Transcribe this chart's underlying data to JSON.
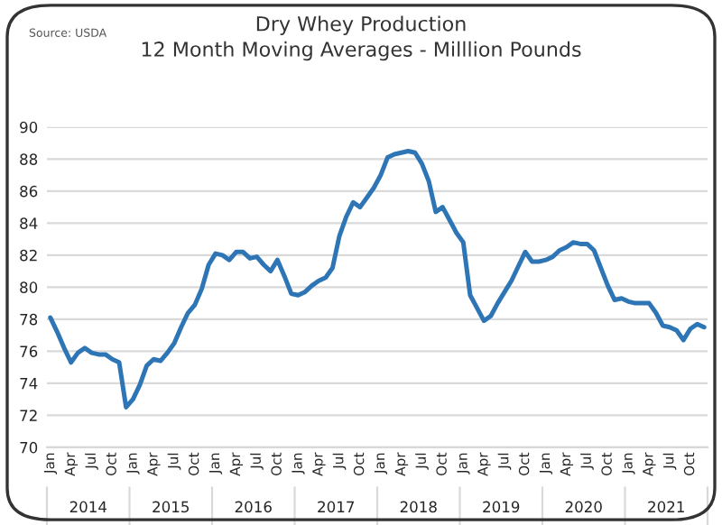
{
  "chart_data": {
    "type": "line",
    "title": "Dry Whey Production\n12 Month Moving Averages - Milllion Pounds",
    "categories": [
      "Jan",
      null,
      null,
      "Apr",
      null,
      null,
      "Jul",
      null,
      null,
      "Oct",
      null,
      null,
      "Jan",
      null,
      null,
      "Apr",
      null,
      null,
      "Jul",
      null,
      null,
      "Oct",
      null,
      null,
      "Jan",
      null,
      null,
      "Apr",
      null,
      null,
      "Jul",
      null,
      null,
      "Oct",
      null,
      null,
      "Jan",
      null,
      null,
      "Apr",
      null,
      null,
      "Jul",
      null,
      null,
      "Oct",
      null,
      null,
      "Jan",
      null,
      null,
      "Apr",
      null,
      null,
      "Jul",
      null,
      null,
      "Oct",
      null,
      null,
      "Jan",
      null,
      null,
      "Apr",
      null,
      null,
      "Jul",
      null,
      null,
      "Oct",
      null,
      null,
      "Jan",
      null,
      null,
      "Apr",
      null,
      null,
      "Jul",
      null,
      null,
      "Oct",
      null,
      null,
      "Jan",
      null,
      null,
      "Apr",
      null,
      null,
      "Jul",
      null,
      null,
      "Oct",
      null,
      null
    ],
    "series": [
      {
        "color": "#2e75b6",
        "values": [
          78.1,
          77.2,
          76.2,
          75.3,
          75.9,
          76.2,
          75.9,
          75.8,
          75.8,
          75.5,
          75.3,
          72.5,
          73.0,
          73.9,
          75.1,
          75.5,
          75.4,
          75.9,
          76.5,
          77.5,
          78.4,
          78.9,
          79.9,
          81.4,
          82.1,
          82.0,
          81.7,
          82.2,
          82.2,
          81.8,
          81.9,
          81.4,
          81.0,
          81.7,
          80.7,
          79.6,
          79.5,
          79.7,
          80.1,
          80.4,
          80.6,
          81.2,
          83.2,
          84.4,
          85.3,
          85.0,
          85.6,
          86.2,
          87.0,
          88.1,
          88.3,
          88.4,
          88.5,
          88.4,
          87.7,
          86.6,
          84.7,
          85.0,
          84.2,
          83.4,
          82.8,
          79.5,
          78.7,
          77.9,
          78.2,
          79.0,
          79.7,
          80.4,
          81.3,
          82.2,
          81.6,
          81.6,
          81.7,
          81.9,
          82.3,
          82.5,
          82.8,
          82.7,
          82.7,
          82.3,
          81.2,
          80.1,
          79.2,
          79.3,
          79.1,
          79.0,
          79.0,
          79.0,
          78.4,
          77.6,
          77.5,
          77.3,
          76.7,
          77.4,
          77.7,
          77.5
        ]
      }
    ],
    "ylim": [
      70,
      90
    ],
    "yticks": [
      70,
      72,
      74,
      76,
      78,
      80,
      82,
      84,
      86,
      88,
      90
    ],
    "grid": "y",
    "legend": false,
    "marker": "none",
    "line_style": "solid",
    "annotations": [
      "Source: USDA",
      "2014",
      "2015",
      "2016",
      "2017",
      "2018",
      "2019",
      "2020",
      "2021"
    ]
  }
}
